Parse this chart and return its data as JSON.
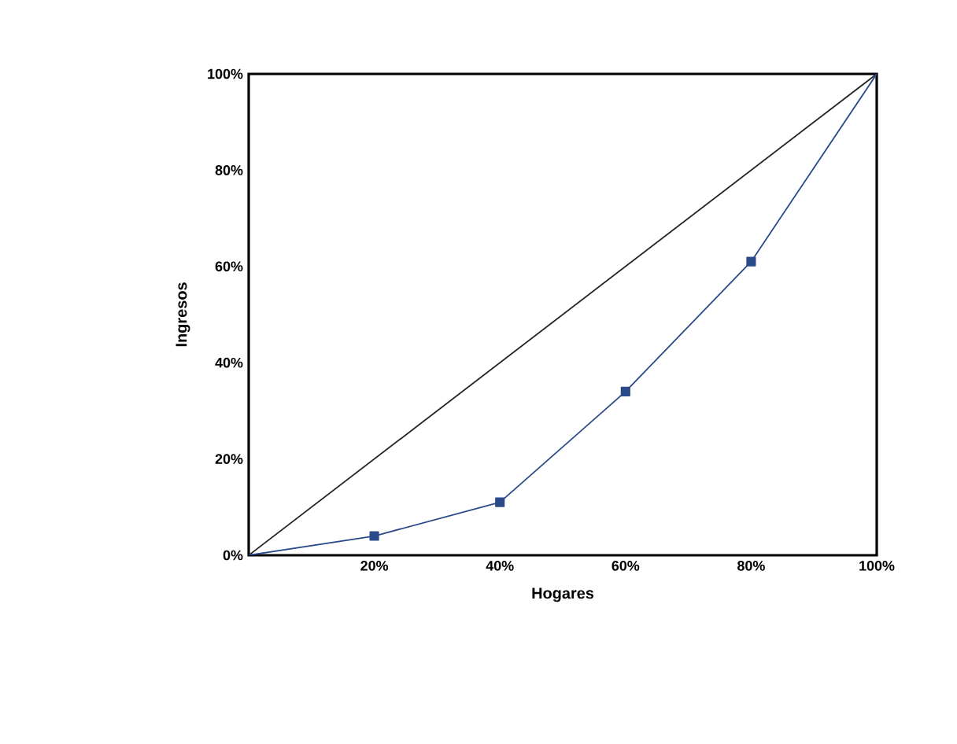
{
  "chart_data": {
    "type": "line",
    "xlabel": "Hogares",
    "ylabel": "Ingresos",
    "xlim": [
      0,
      100
    ],
    "ylim": [
      0,
      100
    ],
    "xticks": [
      {
        "value": 20,
        "label": "20%"
      },
      {
        "value": 40,
        "label": "40%"
      },
      {
        "value": 60,
        "label": "60%"
      },
      {
        "value": 80,
        "label": "80%"
      },
      {
        "value": 100,
        "label": "100%"
      }
    ],
    "yticks": [
      {
        "value": 0,
        "label": "0%"
      },
      {
        "value": 20,
        "label": "20%"
      },
      {
        "value": 40,
        "label": "40%"
      },
      {
        "value": 60,
        "label": "60%"
      },
      {
        "value": 80,
        "label": "80%"
      },
      {
        "value": 100,
        "label": "100%"
      }
    ],
    "grid": false,
    "series": [
      {
        "color": "#222222",
        "marker": "none",
        "x": [
          0,
          100
        ],
        "values": [
          0,
          100
        ]
      },
      {
        "color": "#2b4a8a",
        "marker": "square",
        "x": [
          0,
          20,
          40,
          60,
          80,
          100
        ],
        "values": [
          0,
          4,
          11,
          34,
          61,
          100
        ]
      }
    ]
  }
}
